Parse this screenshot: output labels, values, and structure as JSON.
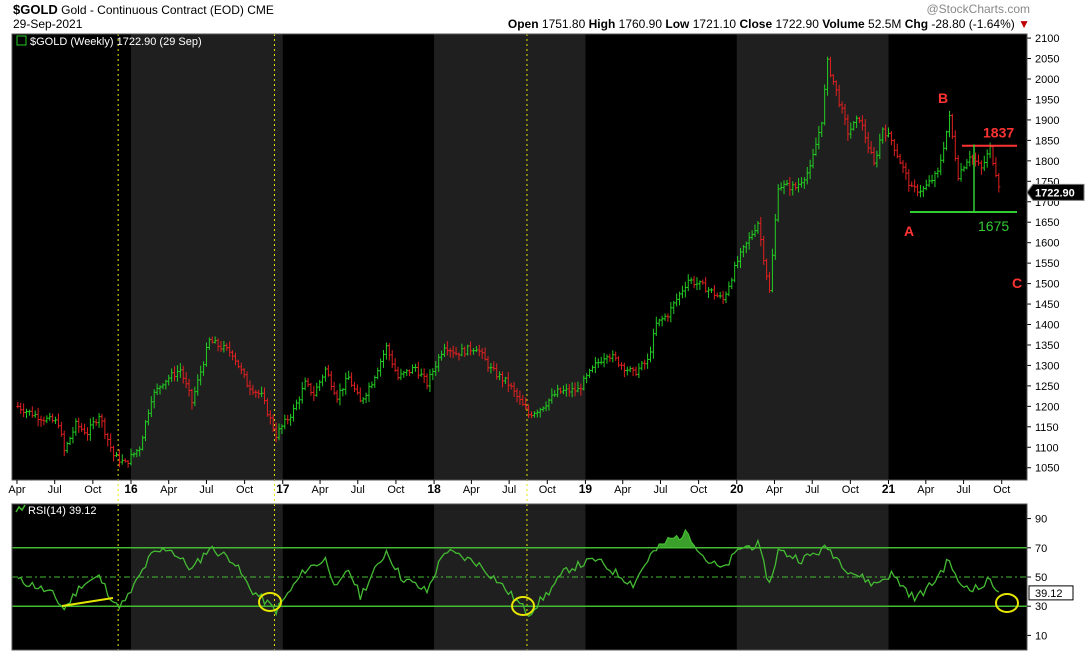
{
  "header": {
    "symbol": "$GOLD",
    "description": "Gold - Continuous Contract (EOD)",
    "exchange": "CME",
    "date": "29-Sep-2021",
    "watermark": "@StockCharts.com",
    "open_label": "Open",
    "open": "1751.80",
    "high_label": "High",
    "high": "1760.90",
    "low_label": "Low",
    "low": "1721.10",
    "close_label": "Close",
    "close": "1722.90",
    "volume_label": "Volume",
    "volume": "52.5M",
    "chg_label": "Chg",
    "chg": "-28.80 (-1.64%)",
    "chg_arrow": "▼"
  },
  "price_panel": {
    "legend": "$GOLD (Weekly) 1722.90 (29 Sep)",
    "last_price_tag": "1722.90",
    "ylim": [
      1020,
      2110
    ],
    "y_ticks": [
      1050,
      1100,
      1150,
      1200,
      1250,
      1300,
      1350,
      1400,
      1450,
      1500,
      1550,
      1600,
      1650,
      1700,
      1750,
      1800,
      1850,
      1900,
      1950,
      2000,
      2050,
      2100
    ],
    "annotations": {
      "resistance_label": "1837",
      "resistance_value": 1837,
      "support_label": "1675",
      "support_value": 1675,
      "wave_a": "A",
      "wave_b": "B",
      "wave_c": "C"
    }
  },
  "rsi_panel": {
    "legend": "RSI(14) 39.12",
    "value_tag": "39.12",
    "ylim": [
      0,
      100
    ],
    "y_ticks": [
      10,
      30,
      50,
      70,
      90
    ],
    "overbought": 70,
    "oversold": 30,
    "midline": 50
  },
  "x_axis": {
    "tick_labels": [
      "Apr",
      "Jul",
      "Oct",
      "16",
      "Apr",
      "Jul",
      "Oct",
      "17",
      "Apr",
      "Jul",
      "Oct",
      "18",
      "Apr",
      "Jul",
      "Oct",
      "19",
      "Apr",
      "Jul",
      "Oct",
      "20",
      "Apr",
      "Jul",
      "Oct",
      "21",
      "Apr",
      "Jul",
      "Oct"
    ]
  },
  "colors": {
    "up": "#22cc22",
    "down": "#e02020",
    "background": "#000000",
    "shade": "#1f1f1f",
    "rsi_line": "#44bb33",
    "marker": "#e6e600",
    "resistance": "#ff3333",
    "support": "#33cc33"
  },
  "chart_data": [
    {
      "type": "candlestick",
      "title": "$GOLD Gold - Continuous Contract (EOD) CME",
      "period": "weekly",
      "x_start": "2015-04",
      "x_end": "2021-09-29",
      "ylim": [
        1020,
        2110
      ],
      "approx_weekly_close_path": [
        [
          "2015-04-03",
          1200
        ],
        [
          "2015-05-01",
          1185
        ],
        [
          "2015-06-05",
          1170
        ],
        [
          "2015-07-10",
          1160
        ],
        [
          "2015-07-24",
          1090
        ],
        [
          "2015-08-21",
          1155
        ],
        [
          "2015-09-18",
          1135
        ],
        [
          "2015-10-16",
          1180
        ],
        [
          "2015-11-20",
          1080
        ],
        [
          "2015-12-18",
          1060
        ],
        [
          "2016-01-22",
          1100
        ],
        [
          "2016-02-19",
          1220
        ],
        [
          "2016-03-18",
          1260
        ],
        [
          "2016-04-29",
          1290
        ],
        [
          "2016-05-27",
          1210
        ],
        [
          "2016-07-08",
          1360
        ],
        [
          "2016-08-05",
          1345
        ],
        [
          "2016-09-02",
          1330
        ],
        [
          "2016-10-07",
          1255
        ],
        [
          "2016-11-11",
          1225
        ],
        [
          "2016-12-16",
          1130
        ],
        [
          "2017-01-27",
          1190
        ],
        [
          "2017-02-24",
          1255
        ],
        [
          "2017-03-17",
          1230
        ],
        [
          "2017-04-14",
          1290
        ],
        [
          "2017-05-12",
          1225
        ],
        [
          "2017-06-09",
          1270
        ],
        [
          "2017-07-07",
          1210
        ],
        [
          "2017-08-04",
          1260
        ],
        [
          "2017-09-08",
          1345
        ],
        [
          "2017-10-06",
          1270
        ],
        [
          "2017-11-17",
          1295
        ],
        [
          "2017-12-15",
          1255
        ],
        [
          "2018-01-26",
          1350
        ],
        [
          "2018-02-23",
          1330
        ],
        [
          "2018-04-13",
          1345
        ],
        [
          "2018-05-18",
          1290
        ],
        [
          "2018-06-29",
          1255
        ],
        [
          "2018-08-17",
          1180
        ],
        [
          "2018-09-14",
          1195
        ],
        [
          "2018-10-26",
          1235
        ],
        [
          "2018-12-14",
          1240
        ],
        [
          "2019-01-25",
          1300
        ],
        [
          "2019-02-22",
          1330
        ],
        [
          "2019-04-26",
          1280
        ],
        [
          "2019-05-31",
          1310
        ],
        [
          "2019-06-21",
          1400
        ],
        [
          "2019-07-19",
          1425
        ],
        [
          "2019-09-06",
          1510
        ],
        [
          "2019-10-18",
          1490
        ],
        [
          "2019-11-29",
          1460
        ],
        [
          "2020-01-03",
          1555
        ],
        [
          "2020-02-21",
          1650
        ],
        [
          "2020-03-20",
          1480
        ],
        [
          "2020-04-10",
          1740
        ],
        [
          "2020-05-22",
          1735
        ],
        [
          "2020-06-26",
          1780
        ],
        [
          "2020-07-24",
          1900
        ],
        [
          "2020-08-07",
          2040
        ],
        [
          "2020-08-28",
          1970
        ],
        [
          "2020-09-25",
          1870
        ],
        [
          "2020-10-23",
          1905
        ],
        [
          "2020-11-27",
          1790
        ],
        [
          "2020-12-18",
          1880
        ],
        [
          "2021-01-08",
          1850
        ],
        [
          "2021-02-26",
          1730
        ],
        [
          "2021-03-26",
          1730
        ],
        [
          "2021-04-30",
          1770
        ],
        [
          "2021-05-28",
          1905
        ],
        [
          "2021-06-18",
          1765
        ],
        [
          "2021-07-16",
          1815
        ],
        [
          "2021-08-13",
          1780
        ],
        [
          "2021-09-03",
          1830
        ],
        [
          "2021-09-29",
          1722.9
        ]
      ]
    },
    {
      "type": "line",
      "title": "RSI(14)",
      "ylim": [
        0,
        100
      ],
      "approx_path": [
        [
          "2015-04-03",
          48
        ],
        [
          "2015-05-15",
          44
        ],
        [
          "2015-06-26",
          38
        ],
        [
          "2015-07-24",
          28
        ],
        [
          "2015-09-04",
          45
        ],
        [
          "2015-10-16",
          50
        ],
        [
          "2015-11-27",
          30
        ],
        [
          "2015-12-18",
          33
        ],
        [
          "2016-02-19",
          65
        ],
        [
          "2016-04-01",
          70
        ],
        [
          "2016-05-27",
          55
        ],
        [
          "2016-07-08",
          70
        ],
        [
          "2016-09-02",
          62
        ],
        [
          "2016-10-14",
          42
        ],
        [
          "2016-12-16",
          27
        ],
        [
          "2017-02-24",
          55
        ],
        [
          "2017-04-14",
          62
        ],
        [
          "2017-05-12",
          42
        ],
        [
          "2017-06-09",
          55
        ],
        [
          "2017-07-07",
          37
        ],
        [
          "2017-09-08",
          68
        ],
        [
          "2017-10-13",
          50
        ],
        [
          "2017-12-15",
          40
        ],
        [
          "2018-01-26",
          68
        ],
        [
          "2018-04-13",
          60
        ],
        [
          "2018-06-01",
          48
        ],
        [
          "2018-08-17",
          25
        ],
        [
          "2018-10-05",
          40
        ],
        [
          "2018-11-16",
          55
        ],
        [
          "2019-01-25",
          62
        ],
        [
          "2019-04-26",
          45
        ],
        [
          "2019-06-07",
          65
        ],
        [
          "2019-07-19",
          75
        ],
        [
          "2019-09-06",
          80
        ],
        [
          "2019-10-18",
          62
        ],
        [
          "2019-11-29",
          55
        ],
        [
          "2020-01-10",
          70
        ],
        [
          "2020-02-21",
          72
        ],
        [
          "2020-03-20",
          45
        ],
        [
          "2020-04-10",
          68
        ],
        [
          "2020-06-05",
          62
        ],
        [
          "2020-08-07",
          70
        ],
        [
          "2020-09-25",
          55
        ],
        [
          "2020-11-27",
          45
        ],
        [
          "2021-01-08",
          52
        ],
        [
          "2021-03-05",
          35
        ],
        [
          "2021-04-16",
          45
        ],
        [
          "2021-05-28",
          62
        ],
        [
          "2021-06-18",
          45
        ],
        [
          "2021-08-06",
          42
        ],
        [
          "2021-09-03",
          48
        ],
        [
          "2021-09-29",
          39.12
        ]
      ]
    }
  ]
}
